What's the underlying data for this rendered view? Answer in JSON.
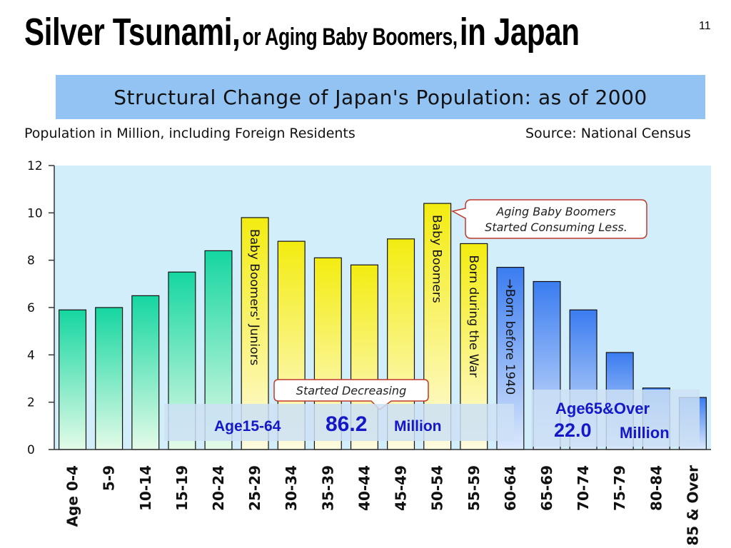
{
  "slide": {
    "title_part1": "Silver Tsunami,",
    "title_part2": "or Aging Baby Boomers,",
    "title_part3": "in Japan",
    "page_number": "11"
  },
  "chart_data": {
    "type": "bar",
    "title": "Structural Change of Japan's Population: as of 2000",
    "ylabel": "Population in Million, including Foreign Residents",
    "source": "Source: National Census",
    "ylim": [
      0,
      12
    ],
    "yticks": [
      0,
      2,
      4,
      6,
      8,
      10,
      12
    ],
    "grid": false,
    "categories": [
      "Age 0-4",
      "5-9",
      "10-14",
      "15-19",
      "20-24",
      "25-29",
      "30-34",
      "35-39",
      "40-44",
      "45-49",
      "50-54",
      "55-59",
      "60-64",
      "65-69",
      "70-74",
      "75-79",
      "80-84",
      "85 & Over"
    ],
    "values": [
      5.9,
      6.0,
      6.5,
      7.5,
      8.4,
      9.8,
      8.8,
      8.1,
      7.8,
      8.9,
      10.4,
      8.7,
      7.7,
      7.1,
      5.9,
      4.1,
      2.6,
      2.2
    ],
    "bar_groups": [
      {
        "range": [
          0,
          4
        ],
        "colors": [
          "#15d6a0",
          "#e4fbe8"
        ]
      },
      {
        "range": [
          5,
          11
        ],
        "colors": [
          "#f3ec10",
          "#fffbe0"
        ]
      },
      {
        "range": [
          12,
          17
        ],
        "colors": [
          "#3a7cf0",
          "#dbe8fc"
        ]
      }
    ],
    "plot_background": "#d3eefb",
    "bar_annotations": [
      {
        "bar": 5,
        "text": "Baby Boomers' Juniors"
      },
      {
        "bar": 10,
        "text": "Baby Boomers"
      },
      {
        "bar": 11,
        "text": "Born during the War"
      },
      {
        "bar": 12,
        "text": "→Born before 1940"
      }
    ],
    "callouts": [
      {
        "lines": [
          "Aging Baby Boomers",
          "Started Consuming Less."
        ],
        "border": "#c0392b"
      },
      {
        "lines": [
          "Started Decreasing"
        ],
        "border": "#c0392b"
      }
    ],
    "summaries": [
      {
        "label": "Age15-64",
        "value": "86.2",
        "unit": "Million"
      },
      {
        "label": "Age65&Over",
        "value": "22.0",
        "unit": "Million"
      }
    ]
  }
}
